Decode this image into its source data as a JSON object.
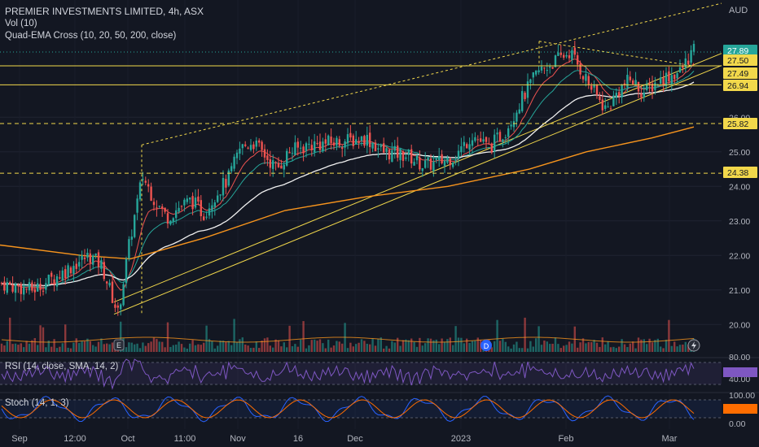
{
  "header": {
    "title": "PREMIER INVESTMENTS LIMITED, 4h, ASX",
    "vol_label": "Vol (10)",
    "ema_label": "Quad-EMA Cross (10, 20, 50, 200, close)",
    "rsi_label": "RSI (14, close, SMA, 14, 2)",
    "stoch_label": "Stoch (14, 1, 3)",
    "currency": "AUD"
  },
  "colors": {
    "background": "#131722",
    "up": "#26a69a",
    "down": "#ef5350",
    "ema10": "#ef5350",
    "ema20": "#26a69a",
    "ema50": "#f0f0f0",
    "ema200": "#f7941d",
    "levels": "#f2d84b",
    "rsi": "#7e57c2",
    "stoch_k": "#2962ff",
    "stoch_d": "#ff6d00"
  },
  "chart_data": {
    "type": "candlestick",
    "symbol": "PREMIER INVESTMENTS LIMITED",
    "interval": "4h",
    "exchange": "ASX",
    "y_axis_ticks": [
      "26.00",
      "25.00",
      "24.00",
      "23.00",
      "22.00",
      "21.00",
      "20.00"
    ],
    "ylim": [
      19.4,
      29.3
    ],
    "x_axis_ticks": [
      "Sep",
      "12:00",
      "Oct",
      "11:00",
      "Nov",
      "16",
      "Dec",
      "2023",
      "Feb",
      "Mar"
    ],
    "price_tags": [
      {
        "value": "27.89",
        "kind": "last"
      },
      {
        "value": "27.50",
        "kind": "level"
      },
      {
        "value": "27.49",
        "kind": "level"
      },
      {
        "value": "26.94",
        "kind": "level"
      },
      {
        "value": "25.82",
        "kind": "level"
      },
      {
        "value": "24.38",
        "kind": "level"
      }
    ],
    "horizontal_levels": [
      27.49,
      26.94,
      25.82,
      24.38
    ],
    "close_path": [
      {
        "x": "Sep",
        "y": 21.2
      },
      {
        "x": "Sep",
        "y": 21.0
      },
      {
        "x": "Sep",
        "y": 21.4
      },
      {
        "x": "12:00",
        "y": 21.8
      },
      {
        "x": "12:00",
        "y": 22.0
      },
      {
        "x": "12:00",
        "y": 21.9
      },
      {
        "x": "12:00",
        "y": 21.7
      },
      {
        "x": "Oct",
        "y": 20.9
      },
      {
        "x": "Oct",
        "y": 20.3
      },
      {
        "x": "Oct",
        "y": 22.4
      },
      {
        "x": "Oct",
        "y": 24.3
      },
      {
        "x": "Oct",
        "y": 23.9
      },
      {
        "x": "11:00",
        "y": 23.1
      },
      {
        "x": "11:00",
        "y": 23.3
      },
      {
        "x": "11:00",
        "y": 23.5
      },
      {
        "x": "11:00",
        "y": 23.2
      },
      {
        "x": "11:00",
        "y": 23.7
      },
      {
        "x": "11:00",
        "y": 24.1
      },
      {
        "x": "Nov",
        "y": 24.9
      },
      {
        "x": "Nov",
        "y": 25.4
      },
      {
        "x": "Nov",
        "y": 24.9
      },
      {
        "x": "Nov",
        "y": 24.7
      },
      {
        "x": "16",
        "y": 25.0
      },
      {
        "x": "16",
        "y": 25.2
      },
      {
        "x": "16",
        "y": 25.2
      },
      {
        "x": "16",
        "y": 25.3
      },
      {
        "x": "Dec",
        "y": 25.4
      },
      {
        "x": "Dec",
        "y": 25.4
      },
      {
        "x": "Dec",
        "y": 25.0
      },
      {
        "x": "Dec",
        "y": 24.9
      },
      {
        "x": "Dec",
        "y": 24.8
      },
      {
        "x": "Dec",
        "y": 24.9
      },
      {
        "x": "Dec",
        "y": 24.6
      },
      {
        "x": "Dec",
        "y": 24.7
      },
      {
        "x": "2023",
        "y": 24.8
      },
      {
        "x": "2023",
        "y": 25.5
      },
      {
        "x": "2023",
        "y": 25.0
      },
      {
        "x": "2023",
        "y": 25.6
      },
      {
        "x": "2023",
        "y": 26.4
      },
      {
        "x": "2023",
        "y": 27.3
      },
      {
        "x": "2023",
        "y": 27.7
      },
      {
        "x": "Feb",
        "y": 27.8
      },
      {
        "x": "Feb",
        "y": 27.6
      },
      {
        "x": "Feb",
        "y": 26.7
      },
      {
        "x": "Feb",
        "y": 26.3
      },
      {
        "x": "Feb",
        "y": 26.6
      },
      {
        "x": "Feb",
        "y": 27.0
      },
      {
        "x": "Feb",
        "y": 26.8
      },
      {
        "x": "Feb",
        "y": 27.1
      },
      {
        "x": "Mar",
        "y": 27.2
      },
      {
        "x": "Mar",
        "y": 27.4
      },
      {
        "x": "Mar",
        "y": 27.89
      }
    ],
    "series": [
      {
        "name": "EMA 10"
      },
      {
        "name": "EMA 20"
      },
      {
        "name": "EMA 50"
      },
      {
        "name": "EMA 200"
      }
    ],
    "rsi_ticks": [
      "80.00",
      "40.00"
    ],
    "stoch_ticks": [
      "100.00",
      "0.00"
    ]
  }
}
